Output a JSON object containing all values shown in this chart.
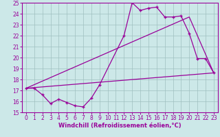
{
  "xlabel": "Windchill (Refroidissement éolien,°C)",
  "xlim": [
    -0.5,
    23.5
  ],
  "ylim": [
    15,
    25
  ],
  "xticks": [
    0,
    1,
    2,
    3,
    4,
    5,
    6,
    7,
    8,
    9,
    10,
    11,
    12,
    13,
    14,
    15,
    16,
    17,
    18,
    19,
    20,
    21,
    22,
    23
  ],
  "yticks": [
    15,
    16,
    17,
    18,
    19,
    20,
    21,
    22,
    23,
    24,
    25
  ],
  "bg_color": "#cce8e8",
  "grid_color": "#9fbfbf",
  "line_color": "#990099",
  "line1_x": [
    0,
    1,
    2,
    3,
    4,
    5,
    6,
    7,
    8,
    9,
    12,
    13,
    14,
    15,
    16,
    17,
    18,
    19,
    20,
    21,
    22,
    23
  ],
  "line1_y": [
    17.2,
    17.2,
    16.6,
    15.8,
    16.2,
    15.9,
    15.6,
    15.5,
    16.3,
    17.5,
    22.0,
    25.0,
    24.3,
    24.5,
    24.6,
    23.7,
    23.7,
    23.8,
    22.2,
    19.9,
    19.9,
    18.6
  ],
  "line2_x": [
    0,
    23
  ],
  "line2_y": [
    17.2,
    18.6
  ],
  "line3_x": [
    0,
    20,
    23
  ],
  "line3_y": [
    17.2,
    23.7,
    18.6
  ],
  "fontsize_xlabel": 6,
  "tick_fontsize": 5.5
}
